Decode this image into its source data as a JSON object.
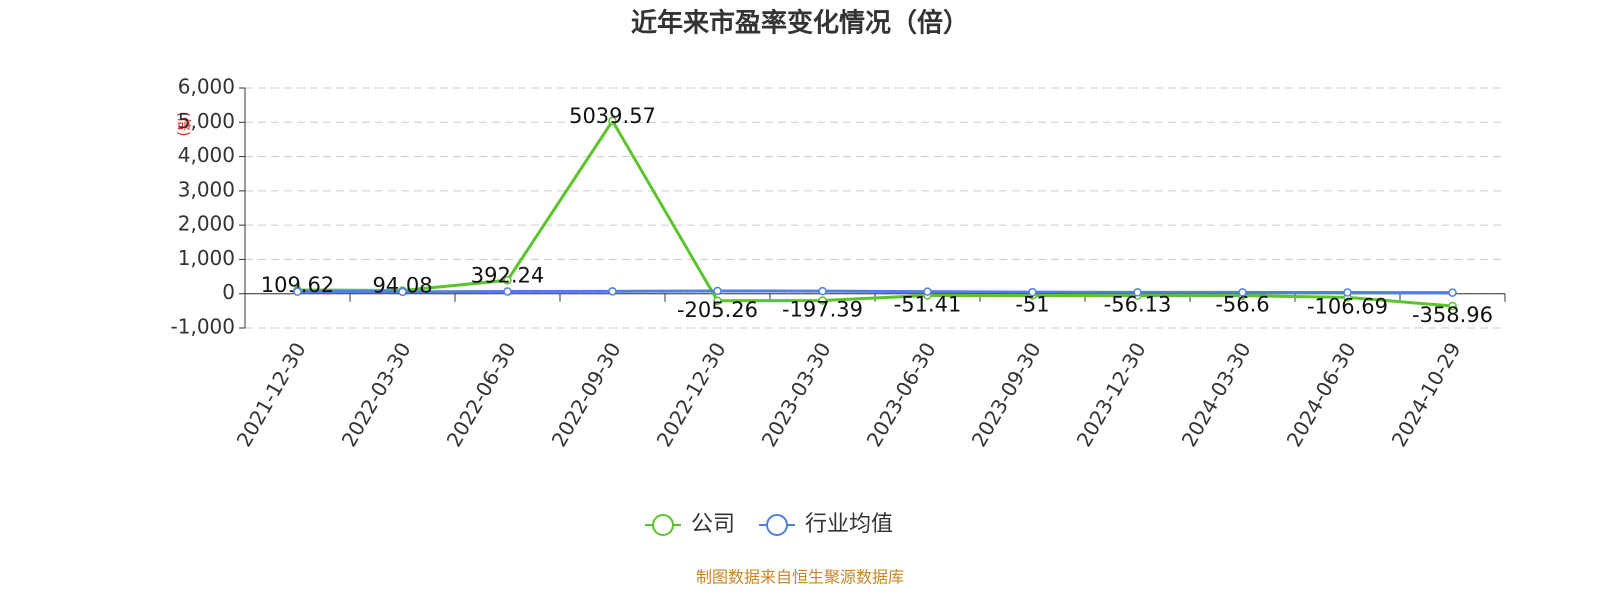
{
  "chart_data": {
    "type": "line",
    "title": "近年来市盈率变化情况（倍）",
    "y_label": "(倍)",
    "categories": [
      "2021-12-30",
      "2022-03-30",
      "2022-06-30",
      "2022-09-30",
      "2022-12-30",
      "2023-03-30",
      "2023-06-30",
      "2023-09-30",
      "2023-12-30",
      "2024-03-30",
      "2024-06-30",
      "2024-10-29"
    ],
    "series": [
      {
        "name": "公司",
        "color": "#5cc42b",
        "values": [
          109.62,
          94.08,
          392.24,
          5039.57,
          -205.26,
          -197.39,
          -51.41,
          -51,
          -56.13,
          -56.6,
          -106.69,
          -358.96
        ]
      },
      {
        "name": "行业均值",
        "color": "#4f7fe0",
        "values": [
          60,
          55,
          65,
          70,
          80,
          75,
          60,
          45,
          40,
          38,
          35,
          30
        ]
      }
    ],
    "ylim": [
      -1000,
      6000
    ],
    "yticks": [
      {
        "value": -1000,
        "label": "-1,000"
      },
      0,
      {
        "value": 1000,
        "label": "1,000"
      },
      {
        "value": 2000,
        "label": "2,000"
      },
      {
        "value": 3000,
        "label": "3,000"
      },
      {
        "value": 4000,
        "label": "4,000"
      },
      {
        "value": 5000,
        "label": "5,000"
      },
      {
        "value": 6000,
        "label": "6,000"
      }
    ],
    "grid": true,
    "source": "制图数据来自恒生聚源数据库"
  }
}
